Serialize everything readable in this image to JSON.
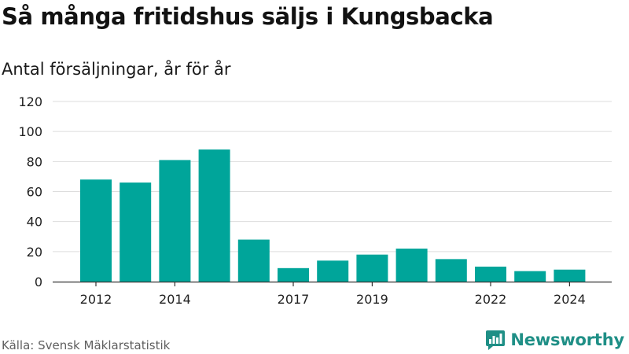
{
  "title": "Så många fritidshus säljs i Kungsbacka",
  "subtitle": "Antal försäljningar, år för år",
  "source": "Källa: Svensk Mäklarstatistik",
  "brand": {
    "name": "Newsworthy",
    "logo_icon": "newsworthy-chart-logo-icon"
  },
  "colors": {
    "bar": "#00a59a",
    "grid": "#dddddd",
    "axis": "#333333",
    "brand": "#1f8f86"
  },
  "chart_data": {
    "type": "bar",
    "categories": [
      "2012",
      "2013",
      "2014",
      "2015",
      "2016",
      "2017",
      "2018",
      "2019",
      "2020",
      "2021",
      "2022",
      "2023",
      "2024"
    ],
    "values": [
      68,
      66,
      81,
      88,
      28,
      9,
      14,
      18,
      22,
      15,
      10,
      7,
      8
    ],
    "x_tick_labels": [
      "2012",
      "2014",
      "2017",
      "2019",
      "2022",
      "2024"
    ],
    "y_ticks": [
      0,
      20,
      40,
      60,
      80,
      100,
      120
    ],
    "ylim": [
      0,
      120
    ],
    "grid": true,
    "xlabel": "",
    "ylabel": ""
  }
}
